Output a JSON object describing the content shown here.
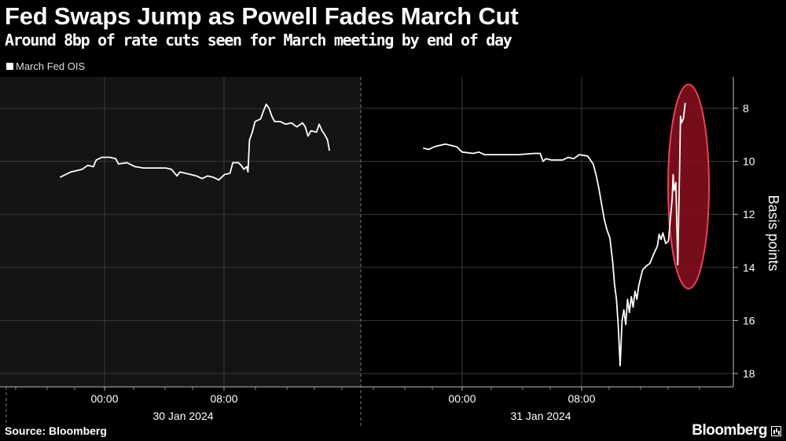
{
  "header": {
    "title": "Fed Swaps Jump as Powell Fades March Cut",
    "subtitle": "Around 8bp of rate cuts seen for March meeting by end of day"
  },
  "footer": {
    "source": "Source: Bloomberg",
    "brand": "Bloomberg"
  },
  "colors": {
    "background": "#000000",
    "plot_shaded": "#141414",
    "line": "#ffffff",
    "highlight_fill": "#8b0f1e",
    "highlight_stroke": "#e8425a"
  },
  "chart_data": {
    "type": "line",
    "title": "Fed Swaps Jump as Powell Fades March Cut",
    "subtitle": "Around 8bp of rate cuts seen for March meeting by end of day",
    "ylabel": "Basis points",
    "xlabel": "",
    "y_axis_inverted": true,
    "ylim": [
      7.3,
      18.5
    ],
    "y_ticks": [
      8,
      10,
      12,
      14,
      16,
      18
    ],
    "x_tick_labels": [
      "00:00",
      "08:00",
      "00:00",
      "08:00"
    ],
    "x_date_labels": [
      "30 Jan 2024",
      "31 Jan 2024"
    ],
    "grid": true,
    "legend_position": "top-left",
    "series": [
      {
        "name": "March Fed OIS",
        "segments": [
          {
            "date": "30 Jan 2024",
            "points": [
              [
                "20:00",
                10.6
              ],
              [
                "20:30",
                10.5
              ],
              [
                "21:00",
                10.4
              ],
              [
                "22:00",
                10.3
              ],
              [
                "22:30",
                10.15
              ],
              [
                "23:00",
                10.2
              ],
              [
                "23:15",
                9.95
              ],
              [
                "23:45",
                9.85
              ],
              [
                "00:30",
                9.85
              ],
              [
                "01:00",
                9.9
              ],
              [
                "01:15",
                10.1
              ],
              [
                "02:00",
                10.05
              ],
              [
                "02:45",
                10.2
              ],
              [
                "03:30",
                10.25
              ],
              [
                "04:30",
                10.25
              ],
              [
                "05:30",
                10.25
              ],
              [
                "06:00",
                10.3
              ],
              [
                "06:30",
                10.55
              ],
              [
                "06:45",
                10.4
              ],
              [
                "07:15",
                10.45
              ],
              [
                "07:45",
                10.5
              ],
              [
                "08:15",
                10.55
              ],
              [
                "08:45",
                10.65
              ],
              [
                "09:15",
                10.55
              ],
              [
                "09:45",
                10.6
              ],
              [
                "10:15",
                10.7
              ],
              [
                "10:45",
                10.5
              ],
              [
                "11:15",
                10.45
              ],
              [
                "11:30",
                10.05
              ],
              [
                "12:00",
                10.05
              ],
              [
                "12:15",
                10.15
              ],
              [
                "12:30",
                10.3
              ],
              [
                "12:45",
                10.2
              ],
              [
                "12:52",
                10.4
              ],
              [
                "13:00",
                9.2
              ],
              [
                "13:15",
                8.9
              ],
              [
                "13:30",
                8.5
              ],
              [
                "14:00",
                8.4
              ],
              [
                "14:15",
                8.1
              ],
              [
                "14:30",
                7.85
              ],
              [
                "14:45",
                8.0
              ],
              [
                "15:00",
                8.3
              ],
              [
                "15:15",
                8.5
              ],
              [
                "15:45",
                8.5
              ],
              [
                "16:15",
                8.6
              ],
              [
                "16:45",
                8.55
              ],
              [
                "17:15",
                8.7
              ],
              [
                "17:45",
                8.55
              ],
              [
                "18:00",
                8.7
              ],
              [
                "18:15",
                9.05
              ],
              [
                "18:30",
                8.85
              ],
              [
                "19:00",
                8.9
              ],
              [
                "19:15",
                8.6
              ],
              [
                "19:30",
                8.85
              ],
              [
                "19:45",
                9.0
              ],
              [
                "20:00",
                9.2
              ],
              [
                "20:10",
                9.6
              ]
            ]
          },
          {
            "date": "31 Jan 2024",
            "points": [
              [
                "20:30",
                9.5
              ],
              [
                "21:00",
                9.55
              ],
              [
                "21:30",
                9.45
              ],
              [
                "22:30",
                9.35
              ],
              [
                "23:30",
                9.45
              ],
              [
                "00:00",
                9.65
              ],
              [
                "01:00",
                9.7
              ],
              [
                "01:30",
                9.65
              ],
              [
                "02:00",
                9.75
              ],
              [
                "03:00",
                9.75
              ],
              [
                "05:00",
                9.75
              ],
              [
                "06:30",
                9.7
              ],
              [
                "07:00",
                9.7
              ],
              [
                "07:15",
                10.0
              ],
              [
                "07:30",
                9.9
              ],
              [
                "08:00",
                9.95
              ],
              [
                "09:00",
                9.95
              ],
              [
                "09:30",
                9.85
              ],
              [
                "10:00",
                9.9
              ],
              [
                "10:30",
                9.75
              ],
              [
                "11:15",
                9.8
              ],
              [
                "11:45",
                10.1
              ],
              [
                "12:00",
                10.5
              ],
              [
                "12:15",
                11.0
              ],
              [
                "12:30",
                11.6
              ],
              [
                "12:45",
                12.2
              ],
              [
                "13:00",
                12.6
              ],
              [
                "13:15",
                12.9
              ],
              [
                "13:30",
                13.8
              ],
              [
                "13:40",
                14.65
              ],
              [
                "13:50",
                15.2
              ],
              [
                "14:00",
                16.2
              ],
              [
                "14:10",
                17.7
              ],
              [
                "14:20",
                16.0
              ],
              [
                "14:30",
                15.6
              ],
              [
                "14:40",
                16.15
              ],
              [
                "14:50",
                15.2
              ],
              [
                "15:00",
                15.7
              ],
              [
                "15:10",
                15.1
              ],
              [
                "15:20",
                15.5
              ],
              [
                "15:30",
                14.9
              ],
              [
                "15:40",
                15.2
              ],
              [
                "15:50",
                14.7
              ],
              [
                "16:00",
                14.4
              ],
              [
                "16:10",
                14.1
              ],
              [
                "16:30",
                13.95
              ],
              [
                "16:50",
                13.85
              ],
              [
                "17:10",
                13.5
              ],
              [
                "17:30",
                13.2
              ],
              [
                "17:40",
                12.75
              ],
              [
                "17:50",
                12.95
              ],
              [
                "18:00",
                12.7
              ],
              [
                "18:15",
                13.1
              ],
              [
                "18:30",
                13.0
              ],
              [
                "18:40",
                12.2
              ],
              [
                "18:50",
                11.4
              ],
              [
                "18:55",
                10.5
              ],
              [
                "19:00",
                11.1
              ],
              [
                "19:10",
                10.8
              ],
              [
                "19:20",
                13.9
              ],
              [
                "19:25",
                12.0
              ],
              [
                "19:30",
                10.2
              ],
              [
                "19:35",
                8.3
              ],
              [
                "19:40",
                8.55
              ],
              [
                "19:50",
                8.4
              ],
              [
                "20:00",
                7.8
              ]
            ]
          }
        ]
      }
    ],
    "annotations": [
      {
        "type": "ellipse-highlight",
        "target": "31 Jan 2024 close",
        "y_range": [
          7.1,
          14.8
        ]
      }
    ]
  }
}
